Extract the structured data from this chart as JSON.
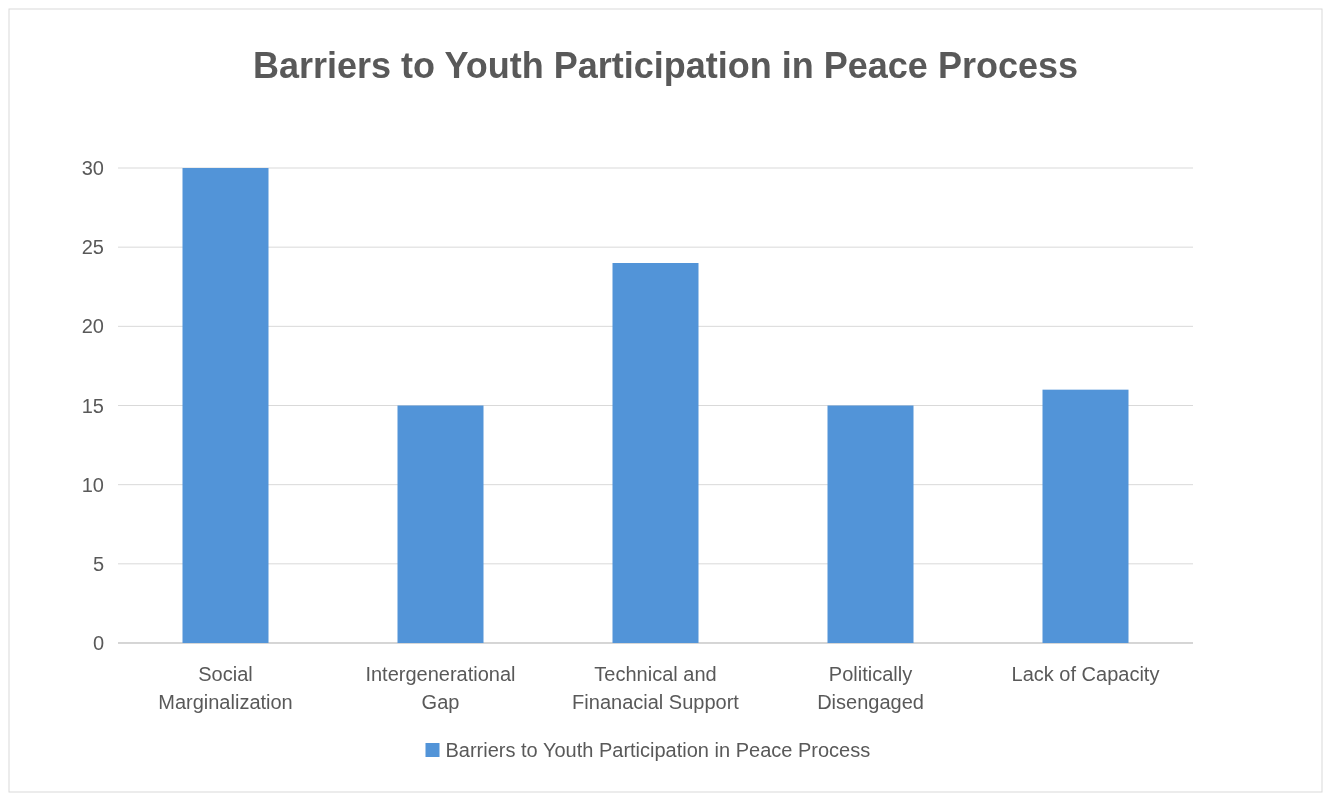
{
  "chart_data": {
    "type": "bar",
    "title": "Barriers to Youth Participation in Peace Process",
    "categories": [
      "Social Marginalization",
      "Intergenerational Gap",
      "Technical and Finanacial Support",
      "Politically Disengaged",
      "Lack of Capacity"
    ],
    "series": [
      {
        "name": "Barriers to Youth Participation in Peace Process",
        "color": "#5294d8",
        "values": [
          30,
          15,
          24,
          15,
          16
        ]
      }
    ],
    "ylim": [
      0,
      30
    ],
    "yticks": [
      0,
      5,
      10,
      15,
      20,
      25,
      30
    ],
    "grid": "y",
    "legend": "bottom"
  }
}
